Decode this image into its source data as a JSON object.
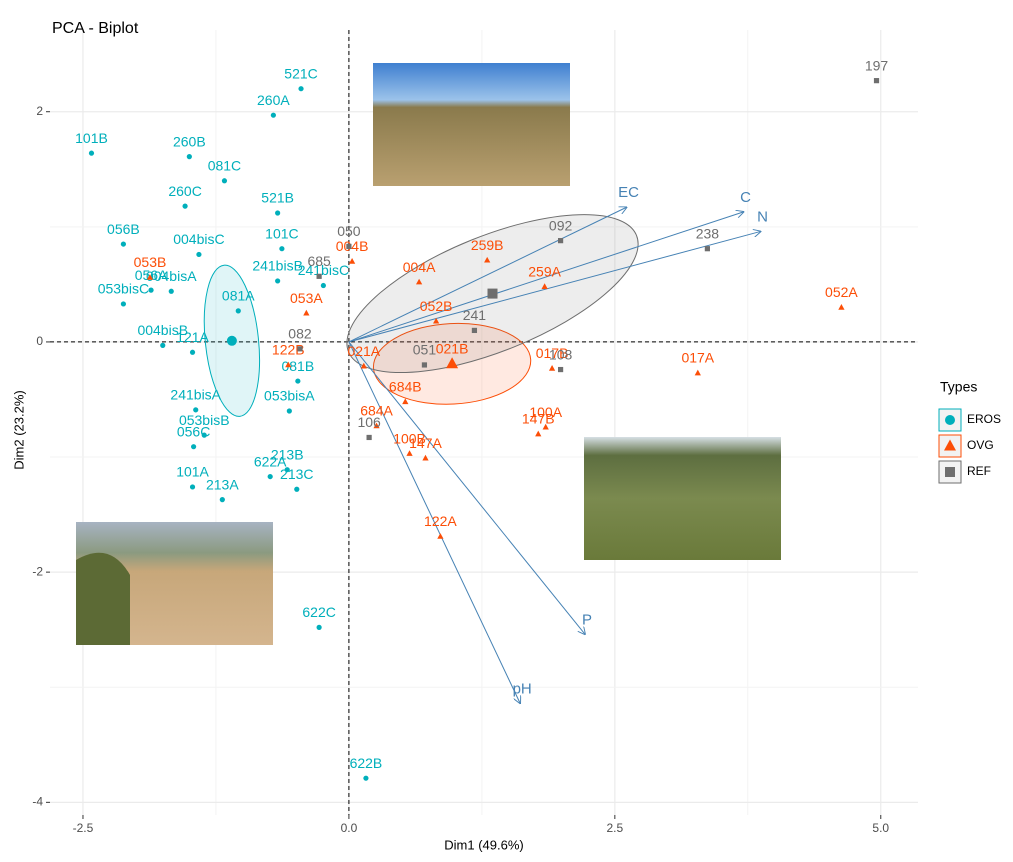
{
  "chart_data": {
    "type": "biplot",
    "title": "PCA - Biplot",
    "x_label": "Dim1 (49.6%)",
    "y_label": "Dim2 (23.2%)",
    "xlim": [
      -2.81,
      5.35
    ],
    "ylim": [
      -4.11,
      2.71
    ],
    "xticks": [
      -2.5,
      {
        "value": 0,
        "label": "0.0"
      },
      2.5,
      {
        "value": 5,
        "label": "5.0"
      }
    ],
    "yticks": [
      -4,
      -2,
      0,
      2
    ],
    "grid": true,
    "legend_title": "Types",
    "legend_position": "right",
    "series": [
      {
        "name": "EROS",
        "color": "#00AFBB",
        "marker": "circle",
        "labels": [
          "521C",
          "260A",
          "101B",
          "260B",
          "081C",
          "260C",
          "521B",
          "056B",
          "004bisC",
          "101C",
          "241bisB",
          "241bisC",
          "053bisC",
          "004bisA",
          "056A",
          "081A",
          "004bisB",
          "121A",
          "081B",
          "241bisA",
          "053bisA",
          "053bisB",
          "056C",
          "213B",
          "622A",
          "213C",
          "101A",
          "213A",
          "622C",
          "622B"
        ],
        "x": [
          -0.45,
          -0.71,
          -2.42,
          -1.5,
          -1.17,
          -1.54,
          -0.67,
          -2.12,
          -1.41,
          -0.63,
          -0.67,
          -0.24,
          -2.12,
          -1.67,
          -1.86,
          -1.04,
          -1.75,
          -1.47,
          -0.48,
          -1.44,
          -0.56,
          -1.36,
          -1.46,
          -0.58,
          -0.74,
          -0.49,
          -1.47,
          -1.19,
          -0.28,
          0.16
        ],
        "y": [
          2.2,
          1.97,
          1.64,
          1.61,
          1.4,
          1.18,
          1.12,
          0.85,
          0.76,
          0.81,
          0.53,
          0.49,
          0.33,
          0.44,
          0.45,
          0.27,
          -0.03,
          -0.09,
          -0.34,
          -0.59,
          -0.6,
          -0.81,
          -0.91,
          -1.11,
          -1.17,
          -1.28,
          -1.26,
          -1.37,
          -2.48,
          -3.79
        ],
        "centroid": [
          -1.1,
          0.01
        ],
        "ellipse": [
          -1.1,
          0.01,
          0.25,
          0.66,
          -6
        ]
      },
      {
        "name": "OVG",
        "color": "#FC4E07",
        "marker": "triangle",
        "labels": [
          "053B",
          "004B",
          "053A",
          "004A",
          "259B",
          "259A",
          "052B",
          "052A",
          "122B",
          "021A",
          "021B",
          "017B",
          "017A",
          "684B",
          "684A",
          "100B",
          "147A",
          "100A",
          "147B",
          "122A"
        ],
        "x": [
          -1.87,
          0.03,
          -0.4,
          0.66,
          1.3,
          1.84,
          0.82,
          4.63,
          -0.57,
          0.14,
          0.97,
          1.91,
          3.28,
          0.53,
          0.26,
          0.57,
          0.72,
          1.85,
          1.78,
          0.86
        ],
        "y": [
          0.56,
          0.7,
          0.25,
          0.52,
          0.71,
          0.48,
          0.18,
          0.3,
          -0.2,
          -0.21,
          -0.19,
          -0.23,
          -0.27,
          -0.52,
          -0.73,
          -0.97,
          -1.01,
          -0.74,
          -0.8,
          -1.69
        ],
        "centroid": [
          0.97,
          -0.19
        ],
        "ellipse": [
          0.97,
          -0.19,
          0.74,
          0.35,
          -3
        ]
      },
      {
        "name": "REF",
        "color": "#6E6E6E",
        "marker": "square",
        "labels": [
          "197",
          "092",
          "238",
          "050",
          "685",
          "241",
          "082",
          "051",
          "108",
          "106"
        ],
        "x": [
          4.96,
          1.99,
          3.37,
          0.0,
          -0.28,
          1.18,
          -0.46,
          0.71,
          1.99,
          0.19
        ],
        "y": [
          2.27,
          0.88,
          0.81,
          0.83,
          0.57,
          0.1,
          -0.06,
          -0.2,
          -0.24,
          -0.83
        ],
        "centroid": [
          1.35,
          0.42
        ],
        "ellipse": [
          1.35,
          0.42,
          1.46,
          0.5,
          -22
        ]
      }
    ],
    "variables": [
      {
        "name": "EC",
        "x": 2.61,
        "y": 1.17
      },
      {
        "name": "C",
        "x": 3.71,
        "y": 1.13
      },
      {
        "name": "N",
        "x": 3.87,
        "y": 0.96
      },
      {
        "name": "P",
        "x": 2.22,
        "y": -2.54
      },
      {
        "name": "pH",
        "x": 1.61,
        "y": -3.14
      }
    ],
    "arrow_color": "#4682B4"
  }
}
